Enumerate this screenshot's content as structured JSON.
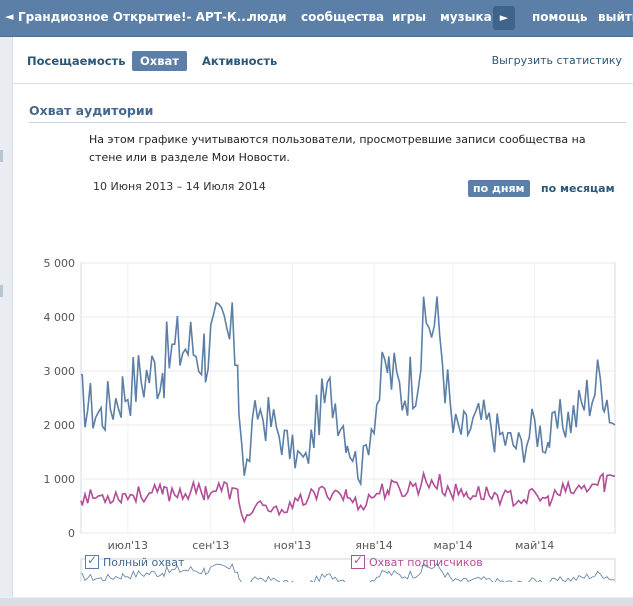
{
  "topbar": {
    "back_icon": "◄",
    "group_name": "Грандиозное Открытие!- АРТ-К...",
    "nav": [
      "люди",
      "сообщества",
      "игры",
      "музыка"
    ],
    "more_icon": "►",
    "nav_right": [
      "помощь",
      "выйти"
    ]
  },
  "tabs": {
    "items": [
      {
        "label": "Посещаемость"
      },
      {
        "label": "Охват"
      },
      {
        "label": "Активность"
      }
    ],
    "export_label": "Выгрузить статистику"
  },
  "section": {
    "title": "Охват аудитории",
    "description": "На этом графике учитываются пользователи, просмотревшие записи сообщества на стене или в разделе Мои Новости."
  },
  "range": {
    "text": "10 Июня 2013 – 14 Июля 2014",
    "mode_days": "по дням",
    "mode_months": "по месяцам"
  },
  "legend": {
    "series1": "Полный охват",
    "series2": "Охват подписчиков"
  },
  "chart_data": {
    "type": "line",
    "x_start": "2013-06-10",
    "x_end": "2014-07-14",
    "ylim": [
      0,
      5000
    ],
    "yticks": [
      "5 000",
      "4 000",
      "3 000",
      "2 000",
      "1 000",
      "0"
    ],
    "xticks": [
      "июл'13",
      "сен'13",
      "ноя'13",
      "янв'14",
      "мар'14",
      "май'14"
    ],
    "colors": {
      "total": "#5b7fa6",
      "subscribers": "#b24d97"
    },
    "series": [
      {
        "name": "Полный охват",
        "key": "total",
        "points": [
          [
            "2013-06-10",
            2500
          ],
          [
            "2013-06-25",
            2200
          ],
          [
            "2013-07-10",
            2600
          ],
          [
            "2013-07-25",
            2900
          ],
          [
            "2013-08-10",
            3100
          ],
          [
            "2013-08-25",
            3500
          ],
          [
            "2013-09-10",
            3400
          ],
          [
            "2013-09-25",
            3700
          ],
          [
            "2013-10-05",
            3400
          ],
          [
            "2013-10-10",
            1000
          ],
          [
            "2013-10-20",
            2300
          ],
          [
            "2013-11-01",
            2000
          ],
          [
            "2013-11-15",
            1500
          ],
          [
            "2013-11-25",
            1300
          ],
          [
            "2013-12-05",
            2300
          ],
          [
            "2013-12-15",
            2600
          ],
          [
            "2013-12-25",
            1900
          ],
          [
            "2014-01-05",
            1100
          ],
          [
            "2014-01-15",
            2300
          ],
          [
            "2014-01-25",
            3100
          ],
          [
            "2014-02-05",
            2600
          ],
          [
            "2014-02-15",
            3000
          ],
          [
            "2014-02-25",
            4000
          ],
          [
            "2014-03-05",
            3700
          ],
          [
            "2014-03-15",
            1900
          ],
          [
            "2014-03-25",
            1900
          ],
          [
            "2014-04-05",
            2100
          ],
          [
            "2014-04-15",
            1900
          ],
          [
            "2014-04-25",
            1700
          ],
          [
            "2014-05-05",
            1600
          ],
          [
            "2014-05-15",
            2000
          ],
          [
            "2014-05-25",
            1700
          ],
          [
            "2014-06-05",
            2100
          ],
          [
            "2014-06-15",
            2200
          ],
          [
            "2014-06-25",
            2600
          ],
          [
            "2014-07-05",
            2900
          ],
          [
            "2014-07-14",
            2000
          ]
        ]
      },
      {
        "name": "Охват подписчиков",
        "key": "subscribers",
        "points": [
          [
            "2013-06-10",
            650
          ],
          [
            "2013-06-25",
            680
          ],
          [
            "2013-07-10",
            700
          ],
          [
            "2013-07-25",
            720
          ],
          [
            "2013-08-10",
            740
          ],
          [
            "2013-08-25",
            760
          ],
          [
            "2013-09-10",
            780
          ],
          [
            "2013-09-25",
            820
          ],
          [
            "2013-10-05",
            700
          ],
          [
            "2013-10-10",
            250
          ],
          [
            "2013-10-20",
            500
          ],
          [
            "2013-11-01",
            400
          ],
          [
            "2013-11-15",
            500
          ],
          [
            "2013-11-25",
            650
          ],
          [
            "2013-12-05",
            720
          ],
          [
            "2013-12-15",
            800
          ],
          [
            "2013-12-25",
            700
          ],
          [
            "2014-01-05",
            500
          ],
          [
            "2014-01-15",
            720
          ],
          [
            "2014-01-25",
            820
          ],
          [
            "2014-02-05",
            800
          ],
          [
            "2014-02-15",
            880
          ],
          [
            "2014-02-25",
            1000
          ],
          [
            "2014-03-05",
            900
          ],
          [
            "2014-03-15",
            760
          ],
          [
            "2014-03-25",
            730
          ],
          [
            "2014-04-05",
            740
          ],
          [
            "2014-04-15",
            700
          ],
          [
            "2014-04-25",
            650
          ],
          [
            "2014-05-05",
            630
          ],
          [
            "2014-05-15",
            680
          ],
          [
            "2014-05-25",
            600
          ],
          [
            "2014-06-05",
            760
          ],
          [
            "2014-06-15",
            780
          ],
          [
            "2014-06-25",
            850
          ],
          [
            "2014-07-05",
            950
          ],
          [
            "2014-07-14",
            1050
          ]
        ]
      }
    ]
  }
}
